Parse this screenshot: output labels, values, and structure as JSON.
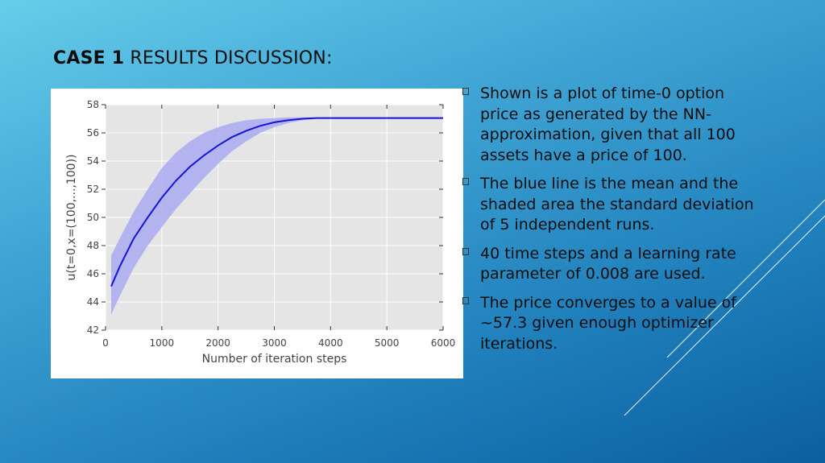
{
  "slide": {
    "title_bold": "CASE 1",
    "title_rest": " RESULTS DISCUSSION:"
  },
  "bullets": [
    "Shown is a plot of time-0 option price as generated by the NN-approximation, given that all 100 assets have a price of 100.",
    "The blue line is the mean and the shaded area the standard deviation of 5 independent runs.",
    "40 time steps and a learning rate parameter of 0.008 are used.",
    "The price converges to a value of ~57.3 given enough optimizer iterations."
  ],
  "colors": {
    "mean_line": "#1515d6",
    "band": "#aaaaf2",
    "plot_bg": "#e5e5e5"
  },
  "chart_data": {
    "type": "line",
    "title": "",
    "xlabel": "Number of iteration steps",
    "ylabel": "u(t=0,x=(100,...,100))",
    "xlim": [
      0,
      6000
    ],
    "ylim": [
      42,
      58
    ],
    "xticks": [
      0,
      1000,
      2000,
      3000,
      4000,
      5000,
      6000
    ],
    "yticks": [
      42,
      44,
      46,
      48,
      50,
      52,
      54,
      56,
      58
    ],
    "grid": true,
    "legend": "none",
    "series": [
      {
        "kind": "mean",
        "x": [
          100,
          250,
          500,
          750,
          1000,
          1250,
          1500,
          1750,
          2000,
          2250,
          2500,
          2750,
          3000,
          3250,
          3500,
          3750,
          4000,
          4500,
          5000,
          5500,
          6000
        ],
        "y": [
          45.1,
          46.5,
          48.5,
          50.0,
          51.4,
          52.6,
          53.6,
          54.4,
          55.1,
          55.7,
          56.15,
          56.5,
          56.75,
          56.9,
          57.0,
          57.05,
          57.05,
          57.05,
          57.05,
          57.05,
          57.05
        ]
      },
      {
        "kind": "std_band",
        "x": [
          100,
          250,
          500,
          750,
          1000,
          1250,
          1500,
          1750,
          2000,
          2250,
          2500,
          2750,
          3000,
          3250,
          3500,
          3750,
          4000,
          4500,
          5000,
          5500,
          6000
        ],
        "upper": [
          47.3,
          48.5,
          50.4,
          52.0,
          53.5,
          54.6,
          55.4,
          56.0,
          56.4,
          56.7,
          56.9,
          57.0,
          57.05,
          57.1,
          57.1,
          57.1,
          57.1,
          57.1,
          57.1,
          57.1,
          57.1
        ],
        "lower": [
          43.1,
          44.4,
          46.4,
          48.0,
          49.3,
          50.6,
          51.7,
          52.8,
          53.8,
          54.7,
          55.4,
          56.0,
          56.4,
          56.7,
          56.9,
          57.0,
          57.0,
          57.0,
          57.0,
          57.0,
          57.0
        ]
      }
    ]
  }
}
